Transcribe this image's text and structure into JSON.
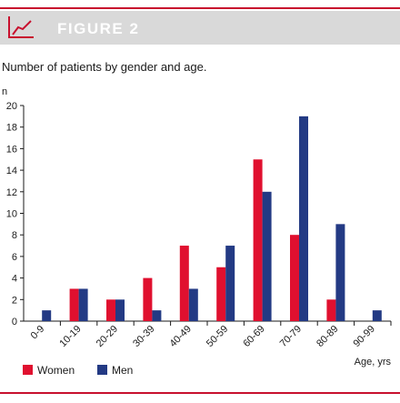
{
  "figure_label": "FIGURE 2",
  "icon": "line-chart-icon",
  "colors": {
    "accent": "#c8102e",
    "banner": "#d9d9d9",
    "women": "#e0102f",
    "men": "#233a84"
  },
  "chart_data": {
    "type": "bar",
    "title": "Number of patients by gender and age.",
    "ylabel": "n",
    "xlabel": "Age, yrs",
    "ylim": [
      0,
      20
    ],
    "yticks": [
      0,
      2,
      4,
      6,
      8,
      10,
      12,
      14,
      16,
      18,
      20
    ],
    "categories": [
      "0-9",
      "10-19",
      "20-29",
      "30-39",
      "40-49",
      "50-59",
      "60-69",
      "70-79",
      "80-89",
      "90-99"
    ],
    "series": [
      {
        "name": "Women",
        "color": "#e0102f",
        "values": [
          0,
          3,
          2,
          4,
          7,
          5,
          15,
          8,
          2,
          0
        ]
      },
      {
        "name": "Men",
        "color": "#233a84",
        "values": [
          1,
          3,
          2,
          1,
          3,
          7,
          12,
          19,
          9,
          1
        ]
      }
    ],
    "legend": "bottom-left",
    "grid": false
  }
}
